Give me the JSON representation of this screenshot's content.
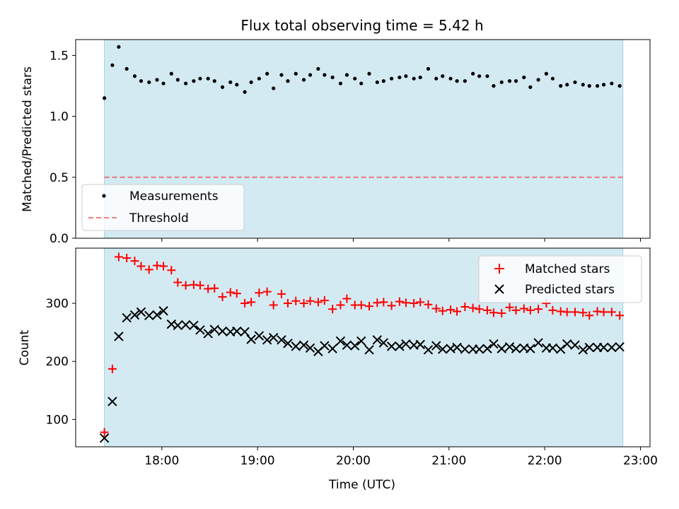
{
  "figure": {
    "title": "Flux total observing time = 5.42 h"
  },
  "colors": {
    "observing_window": "#add8e6",
    "measurements": "#000000",
    "threshold": "#ff0000",
    "matched": "#ff0000",
    "predicted": "#000000"
  },
  "chart_data": [
    {
      "type": "scatter",
      "panel": "top",
      "title": "Flux total observing time = 5.42 h",
      "xlabel": "",
      "ylabel": "Matched/Predicted stars",
      "xlim": [
        "17:06",
        "23:06"
      ],
      "ylim": [
        0,
        1.63
      ],
      "yticks": [
        0.0,
        0.5,
        1.0,
        1.5
      ],
      "ytick_labels": [
        "0.0",
        "0.5",
        "1.0",
        "1.5"
      ],
      "xticks": [
        "18:00",
        "19:00",
        "20:00",
        "21:00",
        "22:00",
        "23:00"
      ],
      "shaded_interval": [
        "17:24",
        "22:49"
      ],
      "grid": false,
      "legend_position": "lower-left",
      "series": [
        {
          "name": "Measurements",
          "type": "scatter",
          "x": [
            "17:24",
            "17:29",
            "17:33",
            "17:38",
            "17:43",
            "17:47",
            "17:52",
            "17:57",
            "18:01",
            "18:06",
            "18:10",
            "18:15",
            "18:20",
            "18:24",
            "18:29",
            "18:33",
            "18:38",
            "18:43",
            "18:47",
            "18:52",
            "18:56",
            "19:01",
            "19:06",
            "19:10",
            "19:15",
            "19:19",
            "19:24",
            "19:29",
            "19:33",
            "19:38",
            "19:42",
            "19:47",
            "19:52",
            "19:56",
            "20:01",
            "20:05",
            "20:10",
            "20:15",
            "20:19",
            "20:24",
            "20:29",
            "20:33",
            "20:38",
            "20:42",
            "20:47",
            "20:52",
            "20:56",
            "21:01",
            "21:05",
            "21:10",
            "21:15",
            "21:19",
            "21:24",
            "21:28",
            "21:33",
            "21:38",
            "21:42",
            "21:47",
            "21:51",
            "21:56",
            "22:01",
            "22:05",
            "22:10",
            "22:14",
            "22:19",
            "22:24",
            "22:28",
            "22:33",
            "22:37",
            "22:42",
            "22:47"
          ],
          "y": [
            1.15,
            1.42,
            1.57,
            1.39,
            1.33,
            1.29,
            1.28,
            1.3,
            1.27,
            1.35,
            1.3,
            1.27,
            1.29,
            1.31,
            1.31,
            1.29,
            1.24,
            1.28,
            1.26,
            1.2,
            1.28,
            1.31,
            1.35,
            1.23,
            1.34,
            1.29,
            1.35,
            1.3,
            1.34,
            1.39,
            1.34,
            1.32,
            1.27,
            1.34,
            1.31,
            1.27,
            1.35,
            1.28,
            1.29,
            1.31,
            1.32,
            1.33,
            1.31,
            1.32,
            1.39,
            1.31,
            1.33,
            1.31,
            1.29,
            1.29,
            1.35,
            1.33,
            1.33,
            1.25,
            1.28,
            1.29,
            1.29,
            1.32,
            1.24,
            1.3,
            1.35,
            1.31,
            1.25,
            1.26,
            1.28,
            1.26,
            1.25,
            1.25,
            1.26,
            1.27,
            1.25
          ]
        },
        {
          "name": "Threshold",
          "type": "line",
          "style": "dashed",
          "x": [
            "17:24",
            "22:49"
          ],
          "y": [
            0.5,
            0.5
          ]
        }
      ]
    },
    {
      "type": "scatter",
      "panel": "bottom",
      "xlabel": "Time (UTC)",
      "ylabel": "Count",
      "xlim": [
        "17:06",
        "23:06"
      ],
      "ylim": [
        53,
        395
      ],
      "yticks": [
        100,
        200,
        300
      ],
      "ytick_labels": [
        "100",
        "200",
        "300"
      ],
      "xticks": [
        "18:00",
        "19:00",
        "20:00",
        "21:00",
        "22:00",
        "23:00"
      ],
      "xtick_labels": [
        "18:00",
        "19:00",
        "20:00",
        "21:00",
        "22:00",
        "23:00"
      ],
      "shaded_interval": [
        "17:24",
        "22:49"
      ],
      "grid": false,
      "legend_position": "upper-right",
      "series": [
        {
          "name": "Matched stars",
          "marker": "+",
          "x": [
            "17:24",
            "17:29",
            "17:33",
            "17:38",
            "17:43",
            "17:47",
            "17:52",
            "17:57",
            "18:01",
            "18:06",
            "18:10",
            "18:15",
            "18:20",
            "18:24",
            "18:29",
            "18:33",
            "18:38",
            "18:43",
            "18:47",
            "18:52",
            "18:56",
            "19:01",
            "19:06",
            "19:10",
            "19:15",
            "19:19",
            "19:24",
            "19:29",
            "19:33",
            "19:38",
            "19:42",
            "19:47",
            "19:52",
            "19:56",
            "20:01",
            "20:05",
            "20:10",
            "20:15",
            "20:19",
            "20:24",
            "20:29",
            "20:33",
            "20:38",
            "20:42",
            "20:47",
            "20:52",
            "20:56",
            "21:01",
            "21:05",
            "21:10",
            "21:15",
            "21:19",
            "21:24",
            "21:28",
            "21:33",
            "21:38",
            "21:42",
            "21:47",
            "21:51",
            "21:56",
            "22:01",
            "22:05",
            "22:10",
            "22:14",
            "22:19",
            "22:24",
            "22:28",
            "22:33",
            "22:37",
            "22:42",
            "22:47"
          ],
          "y": [
            78,
            187,
            380,
            378,
            373,
            364,
            358,
            365,
            364,
            357,
            336,
            331,
            332,
            331,
            325,
            326,
            311,
            319,
            317,
            300,
            302,
            318,
            320,
            297,
            316,
            300,
            304,
            300,
            304,
            302,
            305,
            290,
            297,
            308,
            297,
            297,
            295,
            301,
            302,
            296,
            303,
            301,
            300,
            302,
            298,
            291,
            287,
            289,
            286,
            294,
            292,
            290,
            288,
            284,
            283,
            293,
            288,
            291,
            288,
            290,
            300,
            288,
            286,
            285,
            285,
            284,
            279,
            286,
            285,
            285,
            279
          ]
        },
        {
          "name": "Predicted stars",
          "marker": "x",
          "x": [
            "17:24",
            "17:29",
            "17:33",
            "17:38",
            "17:43",
            "17:47",
            "17:52",
            "17:57",
            "18:01",
            "18:06",
            "18:10",
            "18:15",
            "18:20",
            "18:24",
            "18:29",
            "18:33",
            "18:38",
            "18:43",
            "18:47",
            "18:52",
            "18:56",
            "19:01",
            "19:06",
            "19:10",
            "19:15",
            "19:19",
            "19:24",
            "19:29",
            "19:33",
            "19:38",
            "19:42",
            "19:47",
            "19:52",
            "19:56",
            "20:01",
            "20:05",
            "20:10",
            "20:15",
            "20:19",
            "20:24",
            "20:29",
            "20:33",
            "20:38",
            "20:42",
            "20:47",
            "20:52",
            "20:56",
            "21:01",
            "21:05",
            "21:10",
            "21:15",
            "21:19",
            "21:24",
            "21:28",
            "21:33",
            "21:38",
            "21:42",
            "21:47",
            "21:51",
            "21:56",
            "22:01",
            "22:05",
            "22:10",
            "22:14",
            "22:19",
            "22:24",
            "22:28",
            "22:33",
            "22:37",
            "22:42",
            "22:47"
          ],
          "y": [
            68,
            131,
            243,
            275,
            280,
            285,
            279,
            280,
            287,
            264,
            262,
            263,
            262,
            254,
            248,
            255,
            252,
            251,
            252,
            251,
            238,
            244,
            237,
            241,
            237,
            231,
            226,
            228,
            223,
            217,
            227,
            222,
            235,
            228,
            227,
            235,
            220,
            237,
            232,
            226,
            226,
            230,
            228,
            229,
            220,
            227,
            221,
            222,
            224,
            221,
            221,
            221,
            222,
            230,
            222,
            225,
            222,
            223,
            222,
            232,
            223,
            223,
            221,
            230,
            228,
            220,
            224,
            224,
            224,
            224,
            225
          ]
        }
      ]
    }
  ]
}
